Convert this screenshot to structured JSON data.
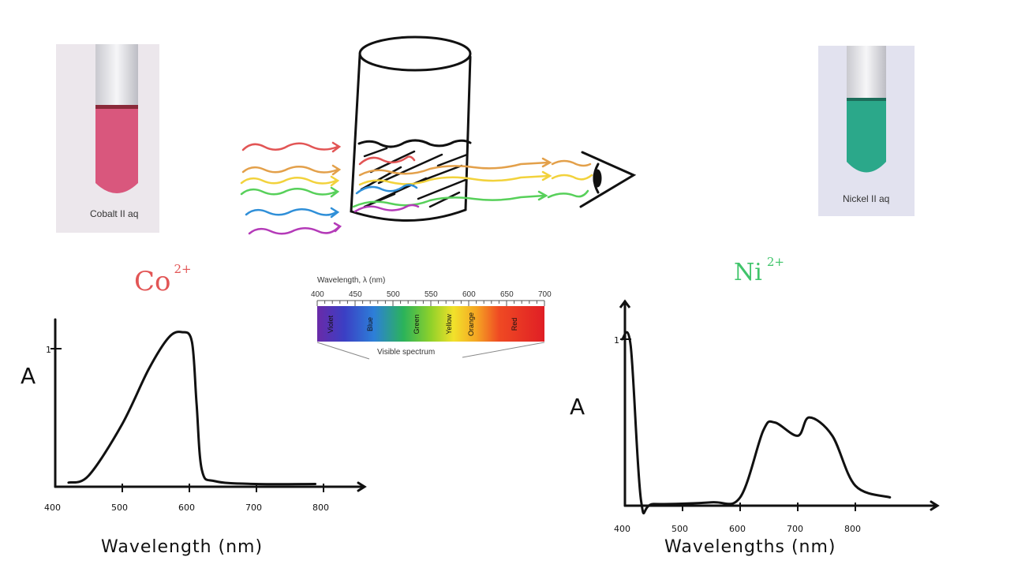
{
  "photos": {
    "cobalt": {
      "caption": "Cobalt II aq",
      "liquid_color": "#d9577d",
      "background": "#ece7ec"
    },
    "nickel": {
      "caption": "Nickel II aq",
      "liquid_color": "#2ba88a",
      "background": "#e2e2ef"
    }
  },
  "ions": {
    "cobalt": {
      "symbol": "Co",
      "charge": "2+",
      "color": "#e25555"
    },
    "nickel": {
      "symbol": "Ni",
      "charge": "2+",
      "color": "#3fc46a"
    }
  },
  "spectrum": {
    "title": "Wavelength, λ (nm)",
    "ticks": [
      "400",
      "450",
      "500",
      "550",
      "600",
      "650",
      "700"
    ],
    "bands": [
      "Violet",
      "Blue",
      "Green",
      "Yellow",
      "Orange",
      "Red"
    ],
    "caption": "Visible spectrum"
  },
  "light_rays": {
    "colors": [
      "#e25555",
      "#e3a04a",
      "#f2d23c",
      "#57d05a",
      "#2f8fd8",
      "#b43ab8"
    ]
  },
  "chart_data": [
    {
      "type": "line",
      "title": "Co 2+",
      "xlabel": "Wavelength (nm)",
      "ylabel": "A",
      "x_ticks": [
        "400",
        "500",
        "600",
        "700",
        "800"
      ],
      "y_ticks": [
        "1"
      ],
      "xlim": [
        400,
        800
      ],
      "ylim": [
        0,
        1.2
      ],
      "x": [
        420,
        450,
        500,
        540,
        570,
        590,
        605,
        612,
        620,
        640,
        700,
        790
      ],
      "y": [
        0.03,
        0.08,
        0.45,
        0.85,
        1.08,
        1.12,
        1.05,
        0.6,
        0.12,
        0.04,
        0.02,
        0.02
      ]
    },
    {
      "type": "line",
      "title": "Ni 2+",
      "xlabel": "Wavelengths (nm)",
      "ylabel": "A",
      "x_ticks": [
        "400",
        "500",
        "600",
        "700",
        "800"
      ],
      "y_ticks": [
        "1"
      ],
      "xlim": [
        380,
        880
      ],
      "ylim": [
        0,
        1.2
      ],
      "x": [
        395,
        410,
        428,
        450,
        550,
        600,
        640,
        660,
        700,
        720,
        760,
        800,
        860
      ],
      "y": [
        1.0,
        0.96,
        0.03,
        0.01,
        0.02,
        0.05,
        0.45,
        0.5,
        0.42,
        0.53,
        0.42,
        0.12,
        0.05
      ]
    }
  ]
}
